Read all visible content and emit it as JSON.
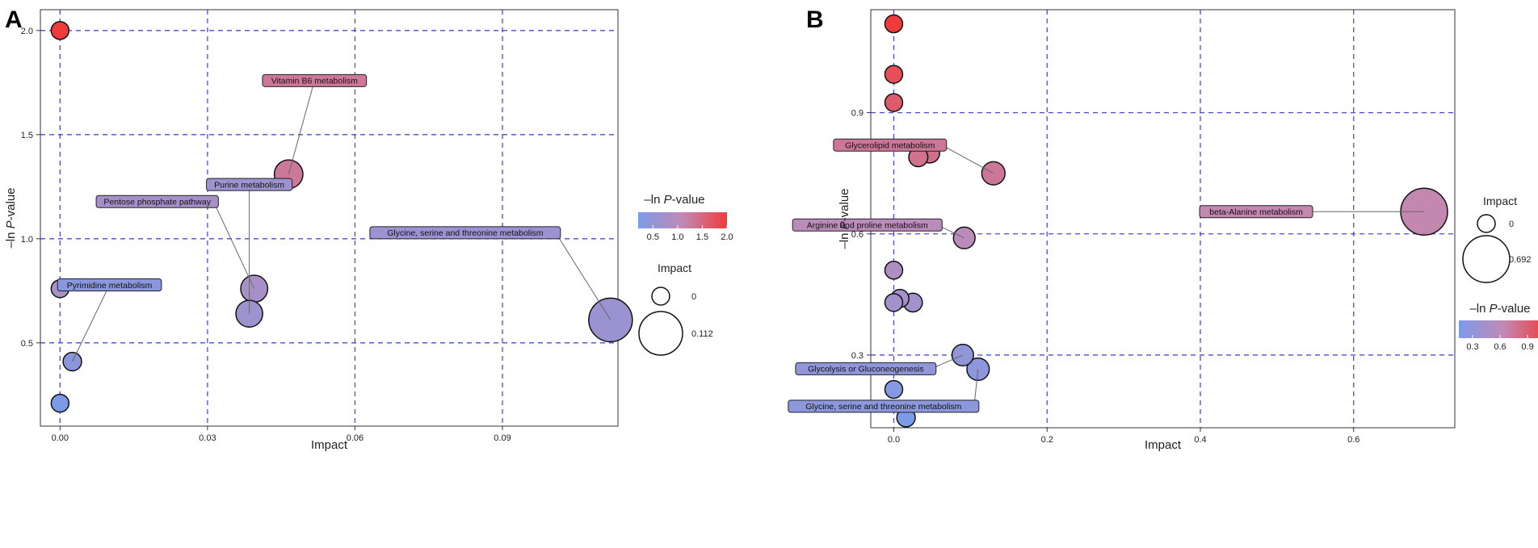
{
  "panels": [
    {
      "letter": "A"
    },
    {
      "letter": "B"
    }
  ],
  "chart_data": [
    {
      "type": "scatter",
      "panel": "A",
      "xlabel": "Impact",
      "ylabel_prefix": "–ln ",
      "ylabel_p": "P",
      "ylabel_suffix": "-value",
      "xlim": [
        -0.004,
        0.1135
      ],
      "ylim": [
        0.1,
        2.1
      ],
      "xticks": [
        0.0,
        0.03,
        0.06,
        0.09
      ],
      "xtick_labels": [
        "0.00",
        "0.03",
        "0.06",
        "0.09"
      ],
      "yticks": [
        0.5,
        1.0,
        1.5,
        2.0
      ],
      "ytick_labels": [
        "0.5",
        "1.0",
        "1.5",
        "2.0"
      ],
      "color_range": [
        0.2,
        2.0
      ],
      "size_range": [
        0,
        0.112
      ],
      "points": [
        {
          "x": 0.0,
          "y": 2.0,
          "size": 0.0,
          "label": ""
        },
        {
          "x": 0.0465,
          "y": 1.31,
          "size": 0.047,
          "label": "Vitamin B6 metabolism"
        },
        {
          "x": 0.0,
          "y": 0.76,
          "size": 0.0,
          "label": ""
        },
        {
          "x": 0.0395,
          "y": 0.76,
          "size": 0.04,
          "label": "Pentose phosphate pathway"
        },
        {
          "x": 0.0385,
          "y": 0.64,
          "size": 0.039,
          "label": "Purine metabolism"
        },
        {
          "x": 0.112,
          "y": 0.61,
          "size": 0.112,
          "label": "Glycine, serine and threonine metabolism"
        },
        {
          "x": 0.0025,
          "y": 0.41,
          "size": 0.003,
          "label": "Pyrimidine metabolism"
        },
        {
          "x": 0.0,
          "y": 0.21,
          "size": 0.0,
          "label": ""
        }
      ],
      "legend_color": {
        "title_prefix": "–ln ",
        "title_p": "P",
        "title_suffix": "-value",
        "ticks": [
          "0.5",
          "1.0",
          "1.5",
          "2.0"
        ],
        "tick_values": [
          0.5,
          1.0,
          1.5,
          2.0
        ]
      },
      "legend_size": {
        "title": "Impact",
        "labels": [
          "0",
          "0.112"
        ],
        "values": [
          0,
          0.112
        ]
      },
      "legend_order": [
        "color",
        "size"
      ]
    },
    {
      "type": "scatter",
      "panel": "B",
      "xlabel": "Impact",
      "ylabel_prefix": "–ln ",
      "ylabel_p": "P",
      "ylabel_suffix": "-value",
      "xlim": [
        -0.03,
        0.732
      ],
      "ylim": [
        0.12,
        1.155
      ],
      "xticks": [
        0.0,
        0.2,
        0.4,
        0.6
      ],
      "xtick_labels": [
        "0.0",
        "0.2",
        "0.4",
        "0.6"
      ],
      "yticks": [
        0.3,
        0.6,
        0.9
      ],
      "ytick_labels": [
        "0.3",
        "0.6",
        "0.9"
      ],
      "color_range": [
        0.15,
        1.12
      ],
      "size_range": [
        0,
        0.692
      ],
      "points": [
        {
          "x": 0.0,
          "y": 1.12,
          "size": 0.0,
          "label": ""
        },
        {
          "x": 0.0,
          "y": 0.995,
          "size": 0.0,
          "label": ""
        },
        {
          "x": 0.0,
          "y": 0.925,
          "size": 0.0,
          "label": ""
        },
        {
          "x": 0.047,
          "y": 0.8,
          "size": 0.047,
          "label": ""
        },
        {
          "x": 0.032,
          "y": 0.79,
          "size": 0.032,
          "label": ""
        },
        {
          "x": 0.13,
          "y": 0.75,
          "size": 0.13,
          "label": "Glycerolipid metabolism"
        },
        {
          "x": 0.692,
          "y": 0.655,
          "size": 0.692,
          "label": "beta-Alanine metabolism"
        },
        {
          "x": 0.092,
          "y": 0.59,
          "size": 0.092,
          "label": "Arginine and proline metabolism"
        },
        {
          "x": 0.0,
          "y": 0.51,
          "size": 0.0,
          "label": ""
        },
        {
          "x": 0.008,
          "y": 0.44,
          "size": 0.008,
          "label": ""
        },
        {
          "x": 0.0,
          "y": 0.43,
          "size": 0.0,
          "label": ""
        },
        {
          "x": 0.025,
          "y": 0.43,
          "size": 0.025,
          "label": ""
        },
        {
          "x": 0.09,
          "y": 0.3,
          "size": 0.09,
          "label": "Glycolysis or Gluconeogenesis"
        },
        {
          "x": 0.11,
          "y": 0.265,
          "size": 0.11,
          "label": "Glycine, serine and threonine metabolism"
        },
        {
          "x": 0.0,
          "y": 0.215,
          "size": 0.0,
          "label": ""
        },
        {
          "x": 0.016,
          "y": 0.145,
          "size": 0.016,
          "label": ""
        }
      ],
      "legend_color": {
        "title_prefix": "–ln ",
        "title_p": "P",
        "title_suffix": "-value",
        "ticks": [
          "0.3",
          "0.6",
          "0.9"
        ],
        "tick_values": [
          0.3,
          0.6,
          0.9
        ]
      },
      "legend_size": {
        "title": "Impact",
        "labels": [
          "0",
          "0.692"
        ],
        "values": [
          0,
          0.692
        ]
      },
      "legend_order": [
        "size",
        "color"
      ]
    }
  ],
  "colors": {
    "low": "#7b9be8",
    "mid": "#c18ab5",
    "high": "#f03b3b",
    "grid": "#2b2bd6",
    "axis": "#333333",
    "text": "#222222"
  }
}
